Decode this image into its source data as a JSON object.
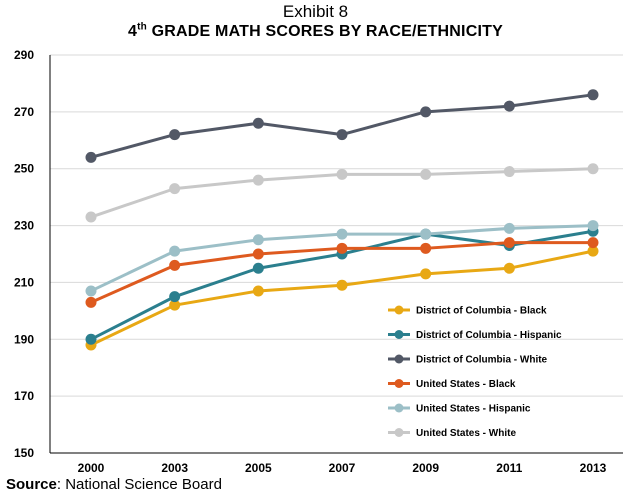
{
  "title": {
    "exhibit": "Exhibit 8",
    "grade_num": "4",
    "grade_sup": "th",
    "rest": " GRADE MATH SCORES BY RACE/ETHNICITY"
  },
  "source": {
    "label": "Source",
    "text": ": National Science Board"
  },
  "chart_data": {
    "type": "line",
    "title": "4th GRADE MATH SCORES BY RACE/ETHNICITY",
    "categories": [
      "2000",
      "2003",
      "2005",
      "2007",
      "2009",
      "2011",
      "2013"
    ],
    "ylim": [
      150,
      290
    ],
    "yticks": [
      150,
      170,
      190,
      210,
      230,
      250,
      270,
      290
    ],
    "grid": "horizontal",
    "legend_position": "bottom-right",
    "series": [
      {
        "name": "District of Columbia - Black",
        "color": "#e8a814",
        "values": [
          188,
          202,
          207,
          209,
          213,
          215,
          221
        ]
      },
      {
        "name": "District of Columbia - Hispanic",
        "color": "#2b7f8e",
        "values": [
          190,
          205,
          215,
          220,
          227,
          223,
          228
        ]
      },
      {
        "name": "District of Columbia - White",
        "color": "#525866",
        "values": [
          254,
          262,
          266,
          262,
          270,
          272,
          276
        ]
      },
      {
        "name": "United States - Black",
        "color": "#de5a1f",
        "values": [
          203,
          216,
          220,
          222,
          222,
          224,
          224
        ]
      },
      {
        "name": "United States - Hispanic",
        "color": "#9cbfc7",
        "values": [
          207,
          221,
          225,
          227,
          227,
          229,
          230
        ]
      },
      {
        "name": "United States - White",
        "color": "#c8c8c8",
        "values": [
          233,
          243,
          246,
          248,
          248,
          249,
          250
        ]
      }
    ]
  }
}
